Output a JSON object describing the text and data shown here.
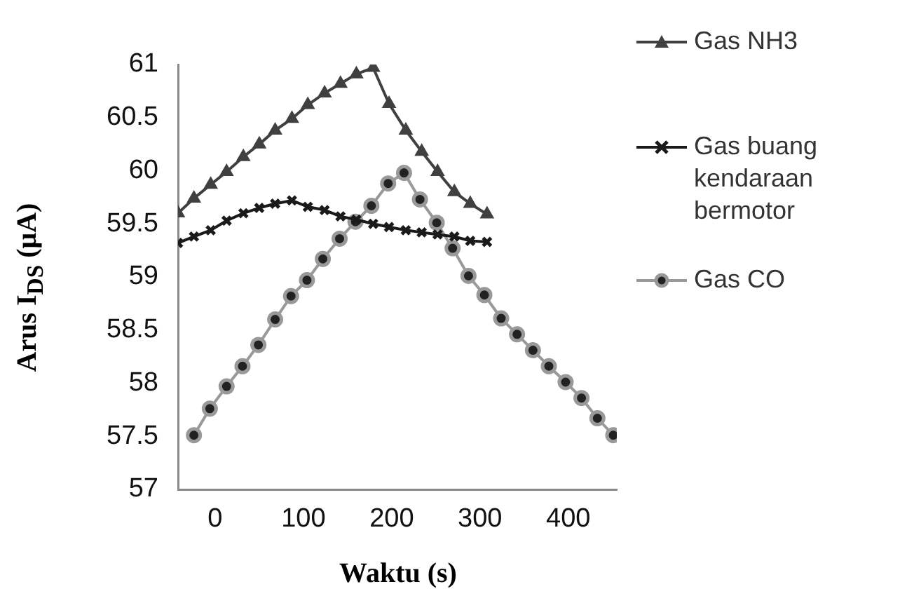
{
  "chart_data": {
    "type": "line",
    "xlabel": "Waktu (s)",
    "ylabel": "Arus I$_{DS}$ (μA)",
    "xlim": [
      -42,
      455
    ],
    "xticks": [
      0,
      100,
      200,
      300,
      400
    ],
    "ylim": [
      57,
      61
    ],
    "yticks": [
      57,
      57.5,
      58,
      58.5,
      59,
      59.5,
      60,
      60.5,
      61
    ],
    "grid": false,
    "legend": "right",
    "series": [
      {
        "name": "Gas NH3",
        "color": "#404040",
        "marker": "triangle",
        "x": [
          -42,
          -24,
          -5,
          13,
          32,
          50,
          68,
          87,
          105,
          124,
          142,
          160,
          179,
          197,
          216,
          234,
          252,
          271,
          289,
          308
        ],
        "values": [
          59.6,
          59.74,
          59.87,
          59.99,
          60.13,
          60.25,
          60.38,
          60.49,
          60.62,
          60.73,
          60.82,
          60.91,
          60.97,
          60.63,
          60.38,
          60.18,
          59.99,
          59.8,
          59.69,
          59.59
        ]
      },
      {
        "name": "Gas buang kendaraan bermotor",
        "color": "#1a1a1a",
        "marker": "cross",
        "x": [
          -42,
          -24,
          -5,
          13,
          32,
          50,
          68,
          87,
          105,
          124,
          142,
          160,
          179,
          197,
          216,
          234,
          252,
          271,
          289,
          308
        ],
        "values": [
          59.32,
          59.38,
          59.44,
          59.53,
          59.6,
          59.65,
          59.69,
          59.72,
          59.66,
          59.63,
          59.57,
          59.54,
          59.5,
          59.47,
          59.44,
          59.42,
          59.4,
          59.38,
          59.34,
          59.33
        ]
      },
      {
        "name": "Gas CO",
        "color": "#999999",
        "marker": "circle",
        "x": [
          -24,
          -6,
          13,
          31,
          49,
          68,
          86,
          104,
          122,
          141,
          159,
          177,
          196,
          214,
          232,
          251,
          269,
          287,
          305,
          324,
          342,
          360,
          378,
          397,
          415,
          433,
          451
        ],
        "values": [
          57.51,
          57.76,
          57.97,
          58.16,
          58.36,
          58.6,
          58.82,
          58.97,
          59.17,
          59.36,
          59.52,
          59.67,
          59.88,
          59.98,
          59.73,
          59.51,
          59.27,
          59.01,
          58.83,
          58.61,
          58.46,
          58.31,
          58.16,
          58.01,
          57.86,
          57.67,
          57.51
        ]
      }
    ]
  }
}
